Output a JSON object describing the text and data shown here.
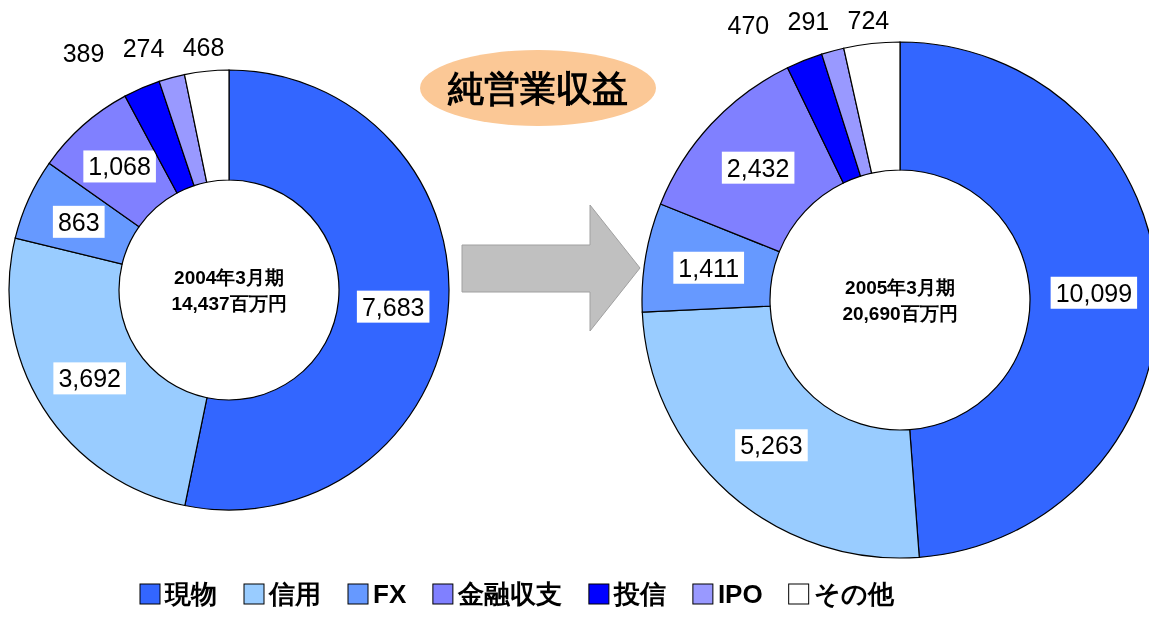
{
  "chart_data": [
    {
      "type": "donut",
      "title": "純営業収益",
      "categories": [
        "現物",
        "信用",
        "FX",
        "金融収支",
        "投信",
        "IPO",
        "その他"
      ],
      "values": [
        7683,
        3692,
        863,
        1068,
        389,
        274,
        468
      ],
      "value_labels": [
        "7,683",
        "3,692",
        "863",
        "1,068",
        "389",
        "274",
        "468"
      ],
      "colors": [
        "#3366ff",
        "#99ccff",
        "#6699ff",
        "#8080ff",
        "#0000ff",
        "#9999ff",
        "#ffffff"
      ],
      "legend": "bottom",
      "annotations": [
        "2004年3月期",
        "14,437百万円"
      ]
    },
    {
      "type": "donut",
      "categories": [
        null,
        null,
        null,
        null,
        null,
        null,
        null
      ],
      "values": [
        10099,
        5263,
        1411,
        2432,
        470,
        291,
        724
      ],
      "value_labels": [
        "10,099",
        "5,263",
        "1,411",
        "2,432",
        "470",
        "291",
        "724"
      ],
      "colors": [
        "#3366ff",
        "#99ccff",
        "#6699ff",
        "#8080ff",
        "#0000ff",
        "#9999ff",
        "#ffffff"
      ],
      "annotations": [
        "2005年3月期",
        "20,690百万円"
      ]
    }
  ]
}
